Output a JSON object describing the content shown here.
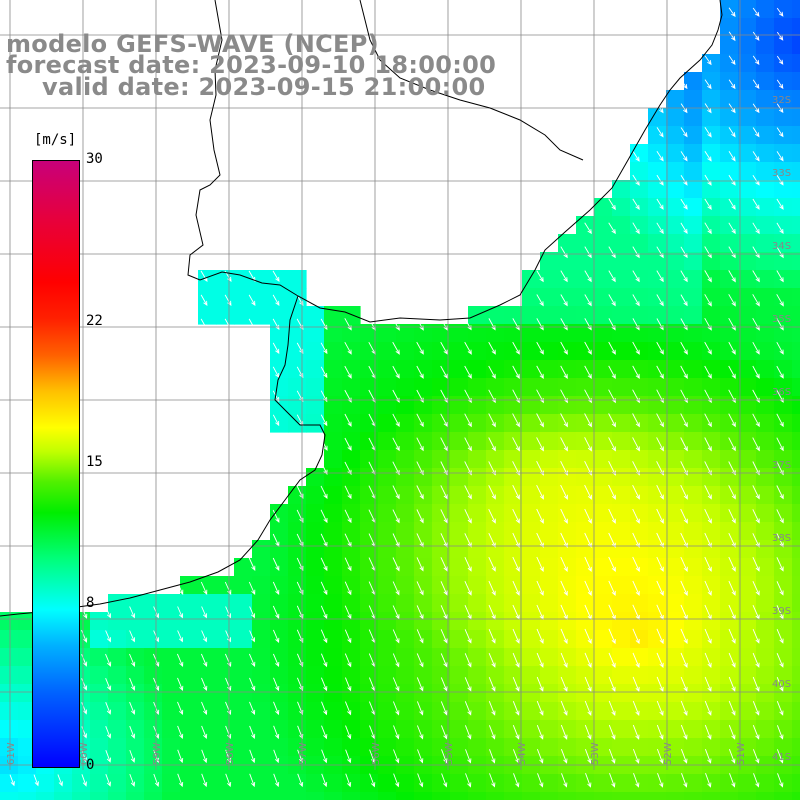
{
  "title": {
    "line1": "modelo GEFS-WAVE (NCEP)",
    "line2": "forecast date: 2023-09-10 18:00:00",
    "line3": "valid date: 2023-09-15 21:00:00"
  },
  "colorbar": {
    "unit": "[m/s]",
    "ticks": [
      {
        "label": "30",
        "value": 30
      },
      {
        "label": "22",
        "value": 22
      },
      {
        "label": "15",
        "value": 15
      },
      {
        "label": "8",
        "value": 8
      },
      {
        "label": "0",
        "value": 0
      }
    ],
    "min": 0,
    "max": 30
  },
  "map": {
    "latitude_labels": [
      "32S",
      "33S",
      "34S",
      "35S",
      "36S",
      "37S",
      "38S",
      "39S",
      "40S",
      "41S"
    ],
    "longitude_labels": [
      "61W",
      "60W",
      "59W",
      "58W",
      "57W",
      "56W",
      "55W",
      "54W",
      "53W",
      "52W",
      "51W"
    ],
    "field": "wind speed",
    "colors": {
      "land": "#ffffff",
      "grid": "#888888",
      "coast": "#000000",
      "arrows": "#ffffff"
    }
  }
}
